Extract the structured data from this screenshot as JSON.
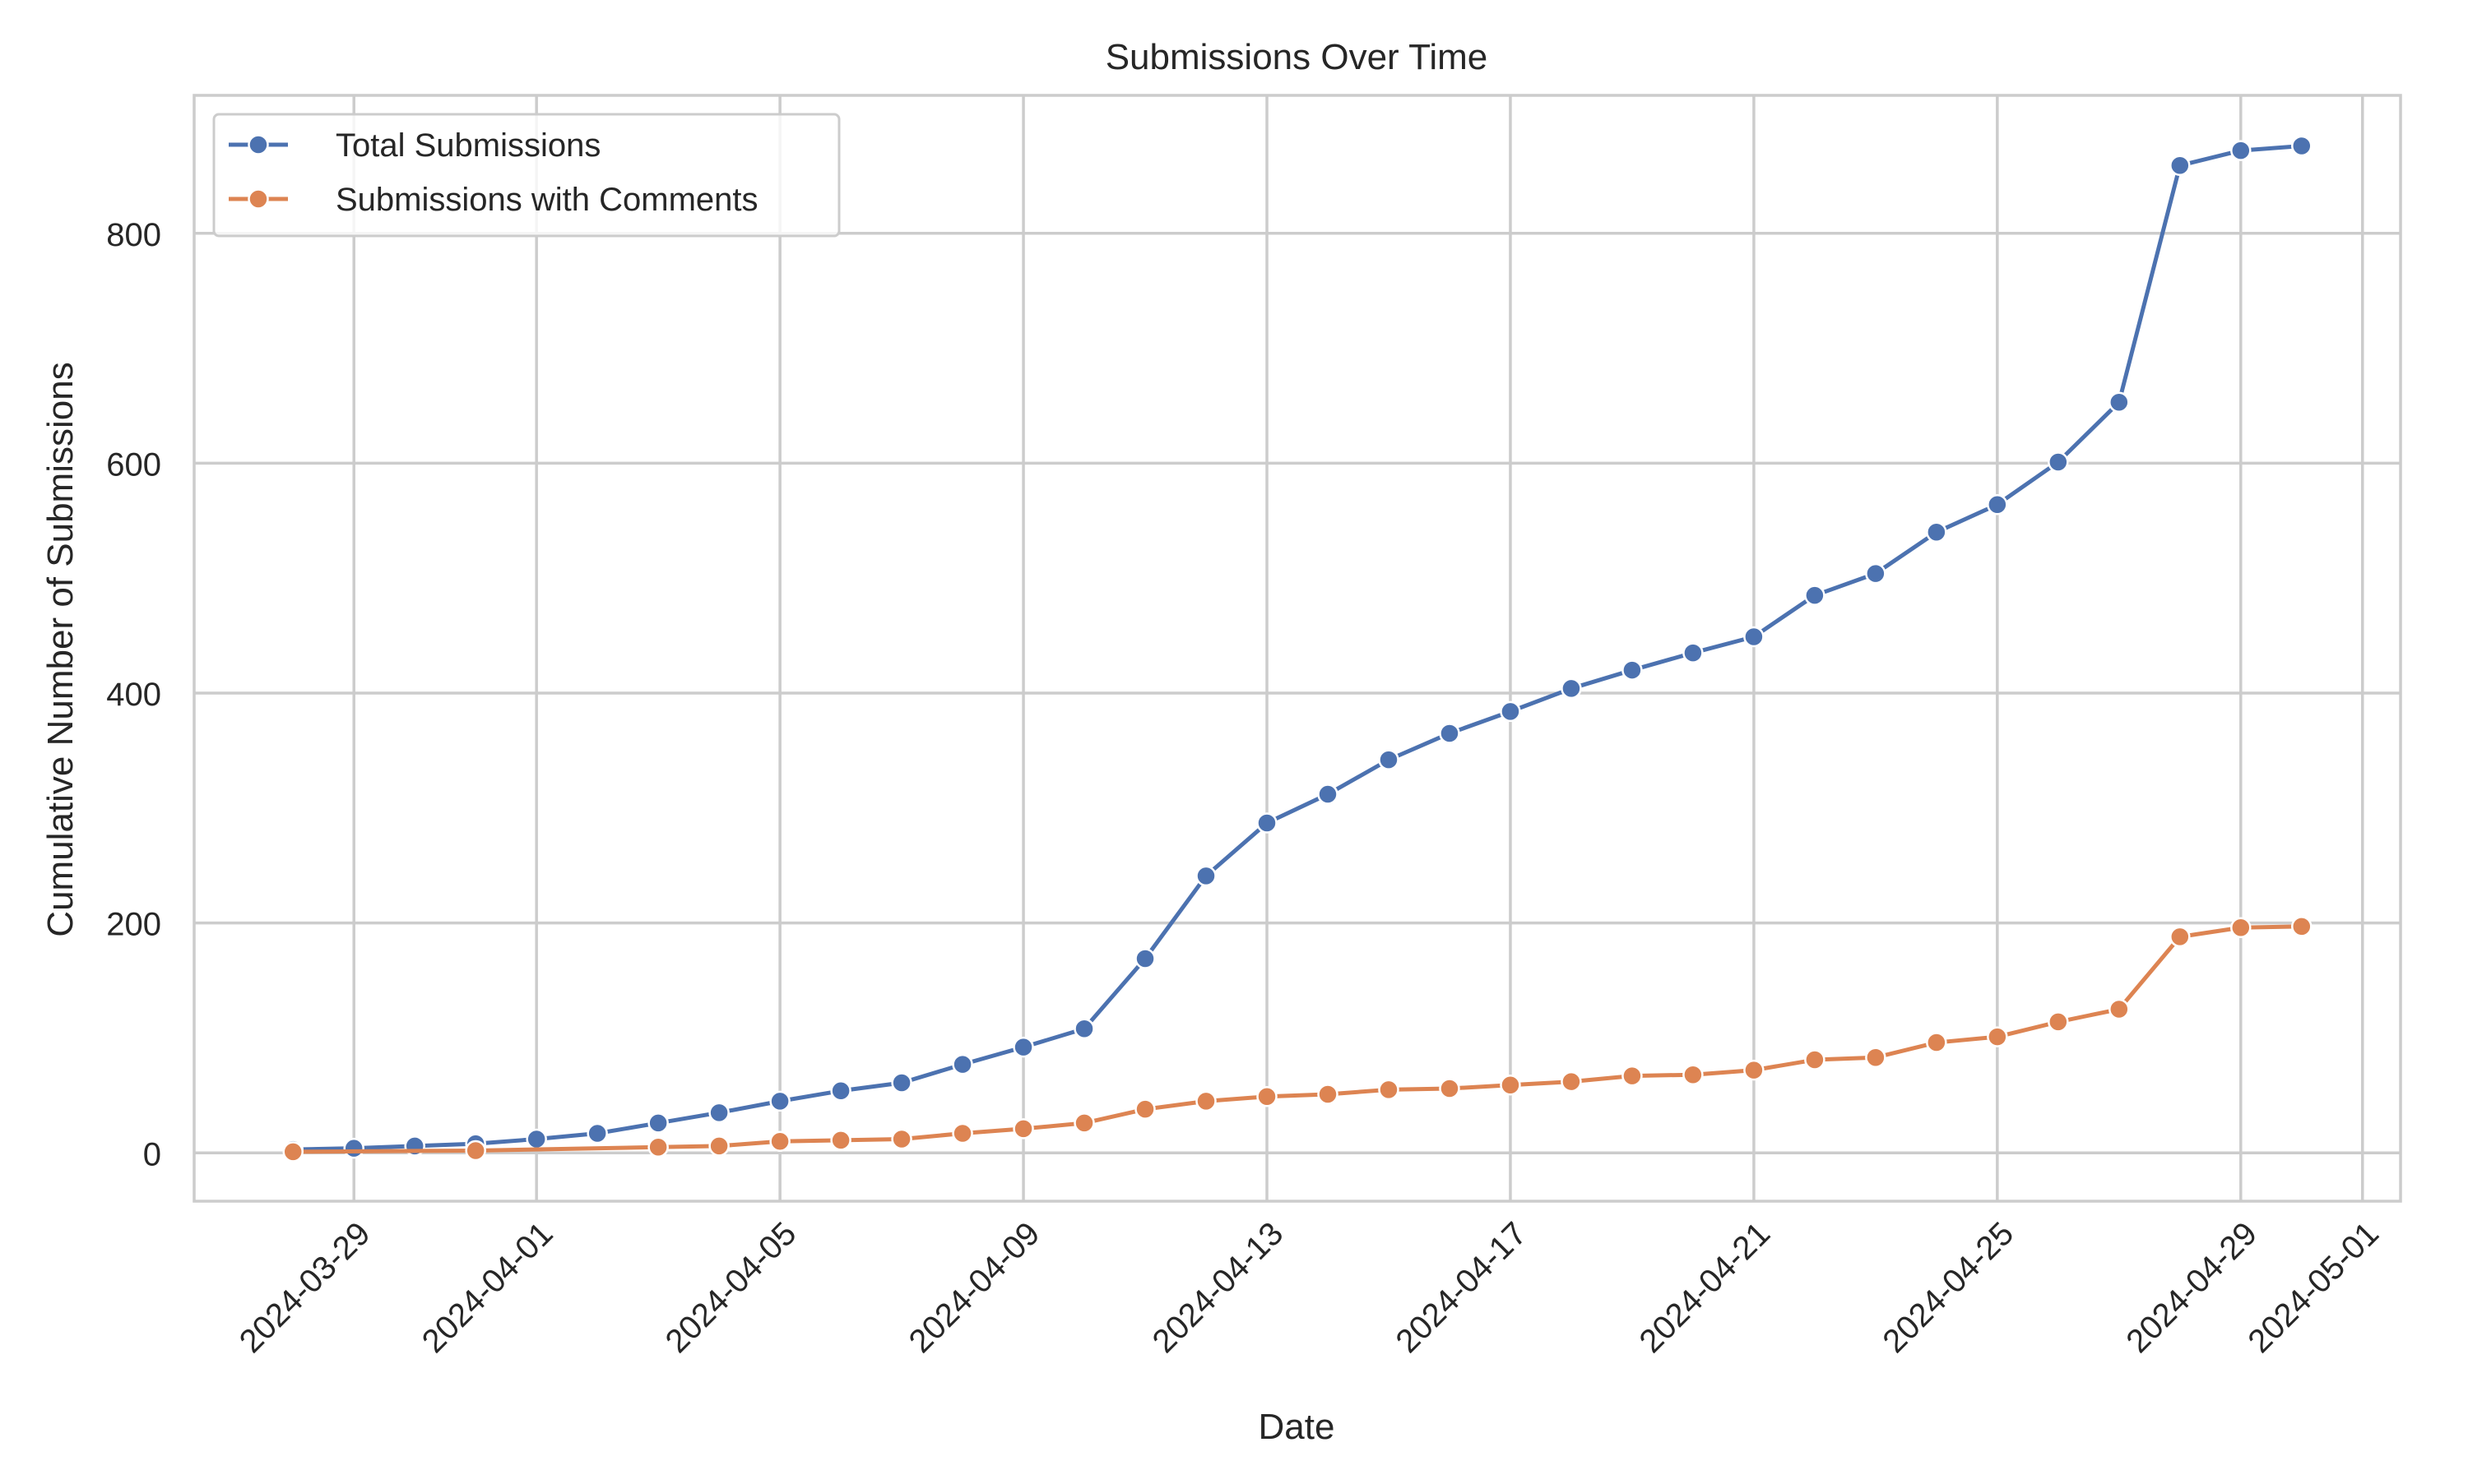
{
  "chart_data": {
    "type": "line",
    "title": "Submissions Over Time",
    "xlabel": "Date",
    "ylabel": "Cumulative Number of Submissions",
    "ylim": [
      -42,
      920
    ],
    "xlim": [
      "2024-03-26T09:00",
      "2024-05-01T15:00"
    ],
    "grid": true,
    "legend_position": "upper left",
    "x_ticks": [
      "2024-03-29",
      "2024-04-01",
      "2024-04-05",
      "2024-04-09",
      "2024-04-13",
      "2024-04-17",
      "2024-04-21",
      "2024-04-25",
      "2024-04-29",
      "2024-05-01"
    ],
    "y_ticks": [
      0,
      200,
      400,
      600,
      800
    ],
    "series": [
      {
        "name": "Total Submissions",
        "color": "#4c72b0",
        "x": [
          "2024-03-28",
          "2024-03-29",
          "2024-03-30",
          "2024-03-31",
          "2024-04-01",
          "2024-04-02",
          "2024-04-03",
          "2024-04-04",
          "2024-04-05",
          "2024-04-06",
          "2024-04-07",
          "2024-04-08",
          "2024-04-09",
          "2024-04-10",
          "2024-04-11",
          "2024-04-12",
          "2024-04-13",
          "2024-04-14",
          "2024-04-15",
          "2024-04-16",
          "2024-04-17",
          "2024-04-18",
          "2024-04-19",
          "2024-04-20",
          "2024-04-21",
          "2024-04-22",
          "2024-04-23",
          "2024-04-24",
          "2024-04-25",
          "2024-04-26",
          "2024-04-27",
          "2024-04-28",
          "2024-04-29",
          "2024-04-30"
        ],
        "values": [
          3,
          4,
          6,
          8,
          12,
          17,
          26,
          35,
          45,
          54,
          61,
          77,
          92,
          108,
          169,
          241,
          287,
          312,
          342,
          365,
          384,
          404,
          420,
          435,
          449,
          485,
          504,
          540,
          564,
          601,
          653,
          859,
          872,
          876
        ]
      },
      {
        "name": "Submissions with Comments",
        "color": "#dd8452",
        "x": [
          "2024-03-28",
          "2024-03-31",
          "2024-04-03",
          "2024-04-04",
          "2024-04-05",
          "2024-04-06",
          "2024-04-07",
          "2024-04-08",
          "2024-04-09",
          "2024-04-10",
          "2024-04-11",
          "2024-04-12",
          "2024-04-13",
          "2024-04-14",
          "2024-04-15",
          "2024-04-16",
          "2024-04-17",
          "2024-04-18",
          "2024-04-19",
          "2024-04-20",
          "2024-04-21",
          "2024-04-22",
          "2024-04-23",
          "2024-04-24",
          "2024-04-25",
          "2024-04-26",
          "2024-04-27",
          "2024-04-28",
          "2024-04-29",
          "2024-04-30"
        ],
        "values": [
          1,
          2,
          5,
          6,
          10,
          11,
          12,
          17,
          21,
          26,
          38,
          45,
          49,
          51,
          55,
          56,
          59,
          62,
          67,
          68,
          72,
          81,
          83,
          96,
          101,
          114,
          125,
          188,
          196,
          197
        ]
      }
    ]
  },
  "style": {
    "grid_color": "#cccccc",
    "text_color": "#262626",
    "background": "#ffffff"
  }
}
